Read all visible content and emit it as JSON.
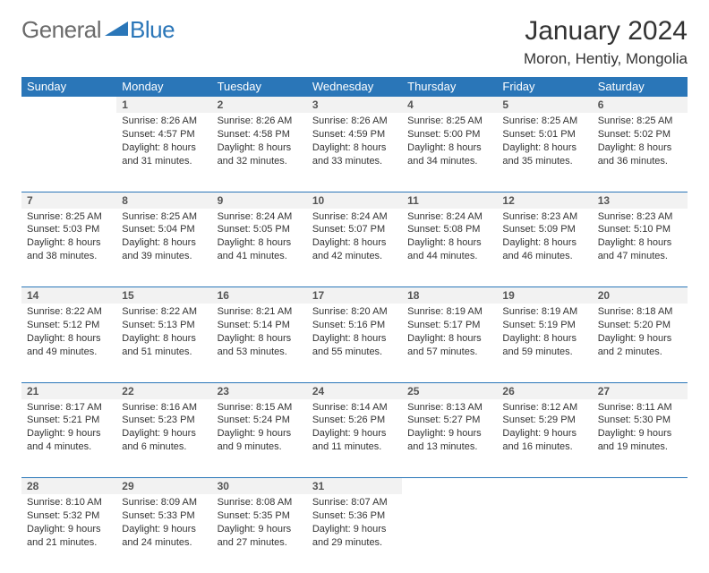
{
  "logo": {
    "text1": "General",
    "text2": "Blue",
    "color1": "#6b6b6b",
    "color2": "#2a76b8"
  },
  "title": "January 2024",
  "location": "Moron, Hentiy, Mongolia",
  "header_bg": "#2a76b8",
  "header_fg": "#ffffff",
  "daynum_bg": "#f2f2f2",
  "border_color": "#2a76b8",
  "days": [
    "Sunday",
    "Monday",
    "Tuesday",
    "Wednesday",
    "Thursday",
    "Friday",
    "Saturday"
  ],
  "weeks": [
    [
      null,
      {
        "n": "1",
        "sr": "8:26 AM",
        "ss": "4:57 PM",
        "dl": "8 hours and 31 minutes."
      },
      {
        "n": "2",
        "sr": "8:26 AM",
        "ss": "4:58 PM",
        "dl": "8 hours and 32 minutes."
      },
      {
        "n": "3",
        "sr": "8:26 AM",
        "ss": "4:59 PM",
        "dl": "8 hours and 33 minutes."
      },
      {
        "n": "4",
        "sr": "8:25 AM",
        "ss": "5:00 PM",
        "dl": "8 hours and 34 minutes."
      },
      {
        "n": "5",
        "sr": "8:25 AM",
        "ss": "5:01 PM",
        "dl": "8 hours and 35 minutes."
      },
      {
        "n": "6",
        "sr": "8:25 AM",
        "ss": "5:02 PM",
        "dl": "8 hours and 36 minutes."
      }
    ],
    [
      {
        "n": "7",
        "sr": "8:25 AM",
        "ss": "5:03 PM",
        "dl": "8 hours and 38 minutes."
      },
      {
        "n": "8",
        "sr": "8:25 AM",
        "ss": "5:04 PM",
        "dl": "8 hours and 39 minutes."
      },
      {
        "n": "9",
        "sr": "8:24 AM",
        "ss": "5:05 PM",
        "dl": "8 hours and 41 minutes."
      },
      {
        "n": "10",
        "sr": "8:24 AM",
        "ss": "5:07 PM",
        "dl": "8 hours and 42 minutes."
      },
      {
        "n": "11",
        "sr": "8:24 AM",
        "ss": "5:08 PM",
        "dl": "8 hours and 44 minutes."
      },
      {
        "n": "12",
        "sr": "8:23 AM",
        "ss": "5:09 PM",
        "dl": "8 hours and 46 minutes."
      },
      {
        "n": "13",
        "sr": "8:23 AM",
        "ss": "5:10 PM",
        "dl": "8 hours and 47 minutes."
      }
    ],
    [
      {
        "n": "14",
        "sr": "8:22 AM",
        "ss": "5:12 PM",
        "dl": "8 hours and 49 minutes."
      },
      {
        "n": "15",
        "sr": "8:22 AM",
        "ss": "5:13 PM",
        "dl": "8 hours and 51 minutes."
      },
      {
        "n": "16",
        "sr": "8:21 AM",
        "ss": "5:14 PM",
        "dl": "8 hours and 53 minutes."
      },
      {
        "n": "17",
        "sr": "8:20 AM",
        "ss": "5:16 PM",
        "dl": "8 hours and 55 minutes."
      },
      {
        "n": "18",
        "sr": "8:19 AM",
        "ss": "5:17 PM",
        "dl": "8 hours and 57 minutes."
      },
      {
        "n": "19",
        "sr": "8:19 AM",
        "ss": "5:19 PM",
        "dl": "8 hours and 59 minutes."
      },
      {
        "n": "20",
        "sr": "8:18 AM",
        "ss": "5:20 PM",
        "dl": "9 hours and 2 minutes."
      }
    ],
    [
      {
        "n": "21",
        "sr": "8:17 AM",
        "ss": "5:21 PM",
        "dl": "9 hours and 4 minutes."
      },
      {
        "n": "22",
        "sr": "8:16 AM",
        "ss": "5:23 PM",
        "dl": "9 hours and 6 minutes."
      },
      {
        "n": "23",
        "sr": "8:15 AM",
        "ss": "5:24 PM",
        "dl": "9 hours and 9 minutes."
      },
      {
        "n": "24",
        "sr": "8:14 AM",
        "ss": "5:26 PM",
        "dl": "9 hours and 11 minutes."
      },
      {
        "n": "25",
        "sr": "8:13 AM",
        "ss": "5:27 PM",
        "dl": "9 hours and 13 minutes."
      },
      {
        "n": "26",
        "sr": "8:12 AM",
        "ss": "5:29 PM",
        "dl": "9 hours and 16 minutes."
      },
      {
        "n": "27",
        "sr": "8:11 AM",
        "ss": "5:30 PM",
        "dl": "9 hours and 19 minutes."
      }
    ],
    [
      {
        "n": "28",
        "sr": "8:10 AM",
        "ss": "5:32 PM",
        "dl": "9 hours and 21 minutes."
      },
      {
        "n": "29",
        "sr": "8:09 AM",
        "ss": "5:33 PM",
        "dl": "9 hours and 24 minutes."
      },
      {
        "n": "30",
        "sr": "8:08 AM",
        "ss": "5:35 PM",
        "dl": "9 hours and 27 minutes."
      },
      {
        "n": "31",
        "sr": "8:07 AM",
        "ss": "5:36 PM",
        "dl": "9 hours and 29 minutes."
      },
      null,
      null,
      null
    ]
  ],
  "labels": {
    "sunrise": "Sunrise:",
    "sunset": "Sunset:",
    "daylight": "Daylight:"
  }
}
